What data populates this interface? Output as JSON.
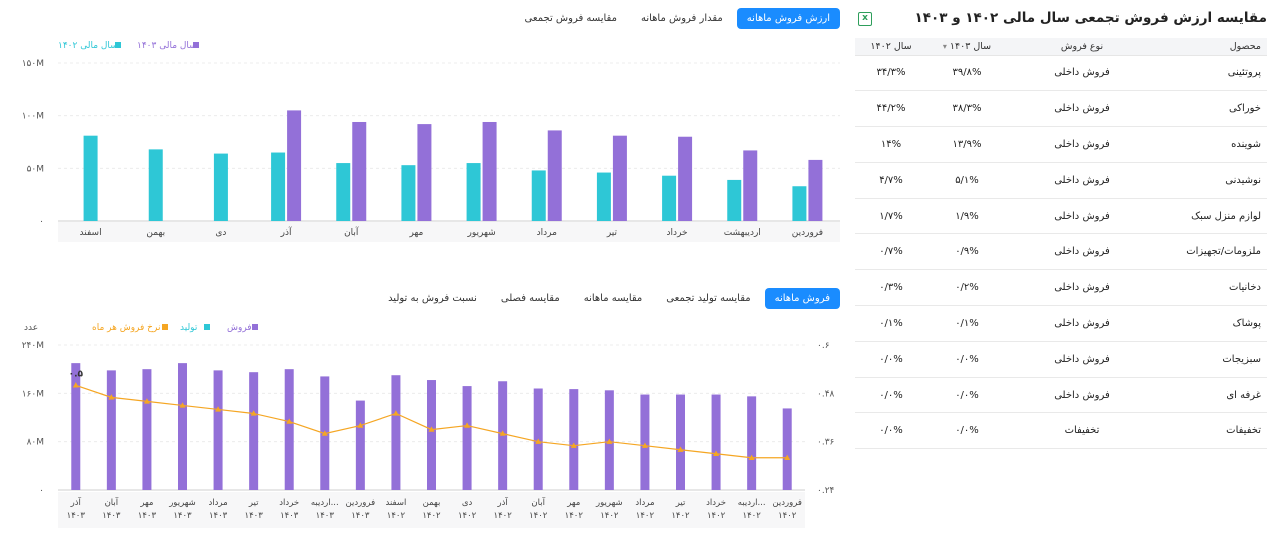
{
  "right_panel": {
    "title": "مقایسه ارزش فروش تجمعی سال مالی ۱۴۰۲ و ۱۴۰۳",
    "export_icon": "excel-icon",
    "columns": {
      "product": "محصول",
      "sale_type": "نوع فروش",
      "y1403": "سال ۱۴۰۳",
      "y1402": "سال ۱۴۰۲"
    },
    "rows": [
      {
        "product": "پروتئینی",
        "sale_type": "فروش داخلی",
        "y1403": "۳۹/۸%",
        "y1402": "۳۴/۳%"
      },
      {
        "product": "خوراکی",
        "sale_type": "فروش داخلی",
        "y1403": "۳۸/۳%",
        "y1402": "۴۴/۲%"
      },
      {
        "product": "شوینده",
        "sale_type": "فروش داخلی",
        "y1403": "۱۳/۹%",
        "y1402": "۱۴%"
      },
      {
        "product": "نوشیدنی",
        "sale_type": "فروش داخلی",
        "y1403": "۵/۱%",
        "y1402": "۴/۷%"
      },
      {
        "product": "لوازم منزل سبک",
        "sale_type": "فروش داخلی",
        "y1403": "۱/۹%",
        "y1402": "۱/۷%"
      },
      {
        "product": "ملزومات/تجهیزات",
        "sale_type": "فروش داخلی",
        "y1403": "۰/۹%",
        "y1402": "۰/۷%"
      },
      {
        "product": "دخانیات",
        "sale_type": "فروش داخلی",
        "y1403": "۰/۲%",
        "y1402": "۰/۳%"
      },
      {
        "product": "پوشاک",
        "sale_type": "فروش داخلی",
        "y1403": "۰/۱%",
        "y1402": "۰/۱%"
      },
      {
        "product": "سبزیجات",
        "sale_type": "فروش داخلی",
        "y1403": "۰/۰%",
        "y1402": "۰/۰%"
      },
      {
        "product": "غرفه ای",
        "sale_type": "فروش داخلی",
        "y1403": "۰/۰%",
        "y1402": "۰/۰%"
      },
      {
        "product": "تخفیفات",
        "sale_type": "تخفیفات",
        "y1403": "۰/۰%",
        "y1402": "۰/۰%"
      }
    ]
  },
  "top_tabs": [
    {
      "label": "ارزش فروش ماهانه",
      "active": true
    },
    {
      "label": "مقدار فروش ماهانه",
      "active": false
    },
    {
      "label": "مقایسه فروش تجمعی",
      "active": false
    }
  ],
  "bottom_tabs": [
    {
      "label": "فروش ماهانه",
      "active": true
    },
    {
      "label": "مقایسه تولید تجمعی",
      "active": false
    },
    {
      "label": "مقایسه ماهانه",
      "active": false
    },
    {
      "label": "مقایسه فصلی",
      "active": false
    },
    {
      "label": "نسبت فروش به تولید",
      "active": false
    }
  ],
  "colors": {
    "purple": "#9370d8",
    "cyan": "#2ec7d6",
    "orange": "#f5a623",
    "accent": "#1a8cff"
  },
  "chart_data": [
    {
      "type": "bar",
      "legend_position": "top-left",
      "categories": [
        "فروردین",
        "اردیبهشت",
        "خرداد",
        "تیر",
        "مرداد",
        "شهریور",
        "مهر",
        "آبان",
        "آذر",
        "دی",
        "بهمن",
        "اسفند"
      ],
      "series": [
        {
          "name": "سال مالی ۱۴۰۲",
          "color": "#2ec7d6",
          "values": [
            33,
            39,
            43,
            46,
            48,
            55,
            53,
            55,
            65,
            64,
            68,
            81
          ]
        },
        {
          "name": "سال مالی ۱۴۰۳",
          "color": "#9370d8",
          "values": [
            58,
            67,
            80,
            81,
            86,
            94,
            92,
            94,
            105,
            null,
            null,
            null
          ]
        }
      ],
      "ylim": [
        0,
        150
      ],
      "y_ticks": [
        0,
        50,
        100,
        150
      ],
      "y_tick_labels": [
        "۰",
        "۵۰M",
        "۱۰۰M",
        "۱۵۰M"
      ],
      "grid": true
    },
    {
      "type": "bar",
      "legend_position": "top-left",
      "categories": [
        "فروردین ۱۴۰۲",
        "اردیبه... ۱۴۰۲",
        "خرداد ۱۴۰۲",
        "تیر ۱۴۰۲",
        "مرداد ۱۴۰۲",
        "شهریور ۱۴۰۲",
        "مهر ۱۴۰۲",
        "آبان ۱۴۰۲",
        "آذر ۱۴۰۲",
        "دی ۱۴۰۲",
        "بهمن ۱۴۰۲",
        "اسفند ۱۴۰۲",
        "فروردین ۱۴۰۳",
        "اردیبه... ۱۴۰۳",
        "خرداد ۱۴۰۳",
        "تیر ۱۴۰۳",
        "مرداد ۱۴۰۳",
        "شهریور ۱۴۰۳",
        "مهر ۱۴۰۳",
        "آبان ۱۴۰۳",
        "آذر ۱۴۰۳"
      ],
      "series": [
        {
          "name": "فروش",
          "color": "#9370d8",
          "axis": "left",
          "values": [
            135,
            155,
            158,
            158,
            158,
            165,
            167,
            168,
            180,
            172,
            182,
            190,
            148,
            188,
            200,
            195,
            198,
            210,
            200,
            198,
            210
          ]
        },
        {
          "name": "تولید",
          "color": "#2ec7d6",
          "axis": "left",
          "values": [
            0,
            0,
            0,
            0,
            0,
            0,
            0,
            0,
            0,
            0,
            0,
            0,
            0,
            0,
            0,
            0,
            0,
            0,
            0,
            0,
            0
          ]
        },
        {
          "name": "نرخ فروش هر ماه",
          "color": "#f5a623",
          "axis": "right",
          "type": "line",
          "values": [
            0.32,
            0.32,
            0.33,
            0.34,
            0.35,
            0.36,
            0.35,
            0.36,
            0.38,
            0.4,
            0.39,
            0.43,
            0.4,
            0.38,
            0.41,
            0.43,
            0.44,
            0.45,
            0.46,
            0.47,
            0.5
          ]
        }
      ],
      "ylabel": "عدد",
      "ylim": [
        0,
        240
      ],
      "y_ticks": [
        0,
        80,
        160,
        240
      ],
      "y_tick_labels": [
        "۰",
        "۸۰M",
        "۱۶۰M",
        "۲۴۰M"
      ],
      "y2lim": [
        0.24,
        0.6
      ],
      "y2_ticks": [
        0.24,
        0.36,
        0.48,
        0.6
      ],
      "y2_tick_labels": [
        "۰.۲۴",
        "۰.۳۶",
        "۰.۴۸",
        "۰.۶"
      ],
      "last_point_label": "۰.۵",
      "grid": true
    }
  ]
}
